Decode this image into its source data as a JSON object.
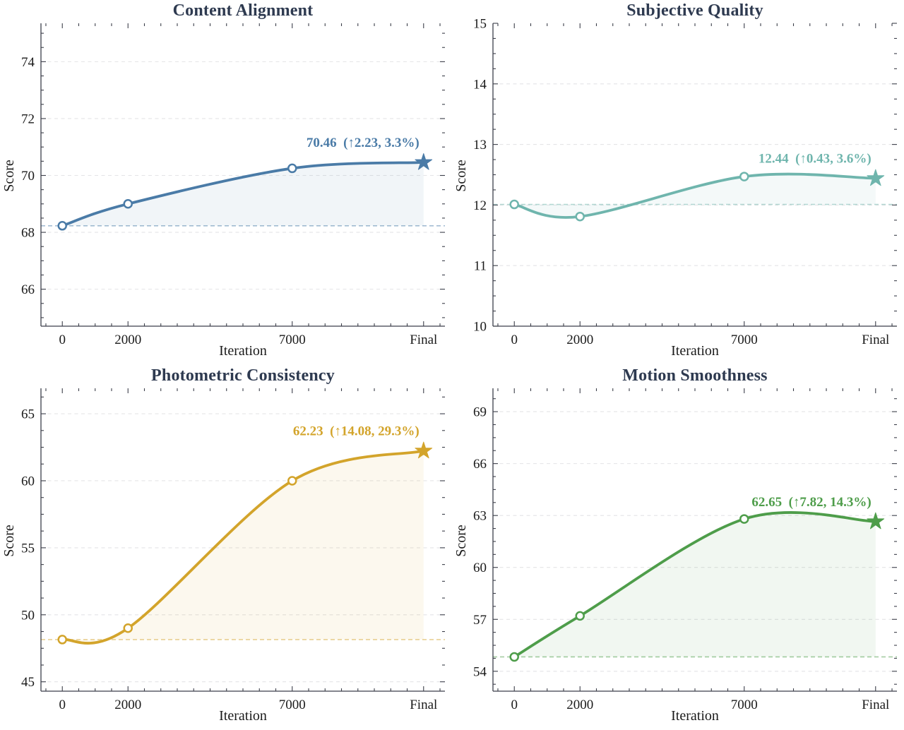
{
  "colors": {
    "title": "#2e3a50",
    "axis": "#3c3f4a",
    "grid": "#e4e4e6",
    "tick_label": "#1a1a1a"
  },
  "chart_data": [
    {
      "type": "line",
      "title": "Content Alignment",
      "xlabel": "Iteration",
      "ylabel": "Score",
      "color": "#4a7ba7",
      "x": [
        0,
        2000,
        7000,
        11000
      ],
      "x_tick_labels": [
        "0",
        "2000",
        "7000",
        "Final"
      ],
      "values": [
        68.23,
        69.0,
        70.25,
        70.46
      ],
      "baseline": 68.23,
      "annotation": "70.46  (↑2.23, 3.3%)",
      "final_marker": "star",
      "xlim": [
        -650,
        11650
      ],
      "x_minor_step": 500,
      "ylim": [
        64.7,
        75.35
      ],
      "yticks": [
        66,
        68,
        70,
        72,
        74
      ],
      "y_minor_step": 0.5,
      "grid": true,
      "legend": false
    },
    {
      "type": "line",
      "title": "Subjective Quality",
      "xlabel": "Iteration",
      "ylabel": "Score",
      "color": "#6fb5ad",
      "x": [
        0,
        2000,
        7000,
        11000
      ],
      "x_tick_labels": [
        "0",
        "2000",
        "7000",
        "Final"
      ],
      "values": [
        12.01,
        11.81,
        12.47,
        12.44
      ],
      "baseline": 12.01,
      "annotation": "12.44  (↑0.43, 3.6%)",
      "final_marker": "star",
      "xlim": [
        -650,
        11650
      ],
      "x_minor_step": 500,
      "ylim": [
        10,
        15
      ],
      "yticks": [
        10,
        11,
        12,
        13,
        14,
        15
      ],
      "y_minor_step": 0.25,
      "grid": true,
      "legend": false
    },
    {
      "type": "line",
      "title": "Photometric Consistency",
      "xlabel": "Iteration",
      "ylabel": "Score",
      "color": "#d3a42b",
      "x": [
        0,
        2000,
        7000,
        11000
      ],
      "x_tick_labels": [
        "0",
        "2000",
        "7000",
        "Final"
      ],
      "values": [
        48.15,
        49.0,
        60.0,
        62.23
      ],
      "baseline": 48.15,
      "annotation": "62.23  (↑14.08, 29.3%)",
      "final_marker": "star",
      "xlim": [
        -650,
        11650
      ],
      "x_minor_step": 500,
      "ylim": [
        44.3,
        66.9
      ],
      "yticks": [
        45,
        50,
        55,
        60,
        65
      ],
      "y_minor_step": 1.25,
      "grid": true,
      "legend": false
    },
    {
      "type": "line",
      "title": "Motion Smoothness",
      "xlabel": "Iteration",
      "ylabel": "Score",
      "color": "#4e9d4a",
      "x": [
        0,
        2000,
        7000,
        11000
      ],
      "x_tick_labels": [
        "0",
        "2000",
        "7000",
        "Final"
      ],
      "values": [
        54.83,
        57.2,
        62.8,
        62.65
      ],
      "baseline": 54.83,
      "annotation": "62.65  (↑7.82, 14.3%)",
      "final_marker": "star",
      "xlim": [
        -650,
        11650
      ],
      "x_minor_step": 500,
      "ylim": [
        52.85,
        70.35
      ],
      "yticks": [
        54,
        57,
        60,
        63,
        66,
        69
      ],
      "y_minor_step": 0.75,
      "grid": true,
      "legend": false
    }
  ]
}
